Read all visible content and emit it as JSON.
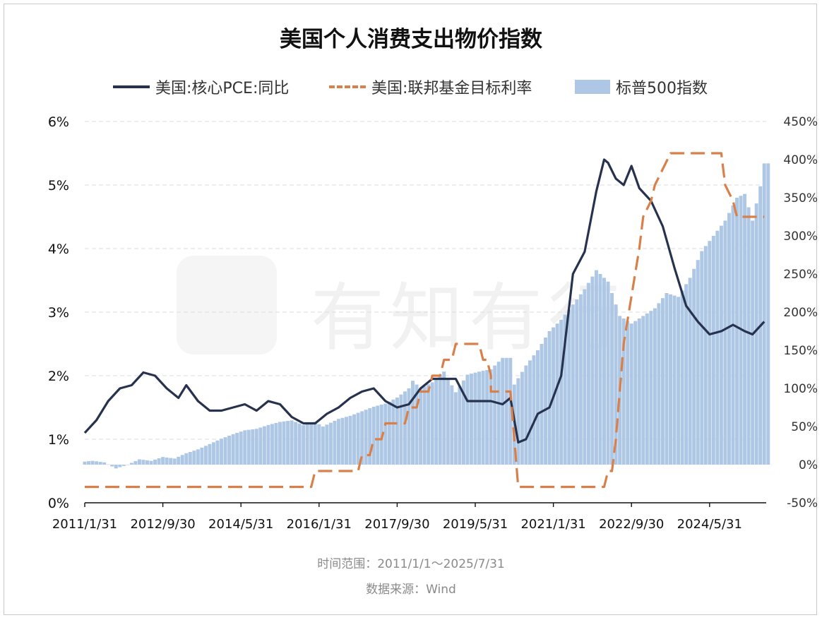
{
  "title": "美国个人消费支出物价指数",
  "legend": {
    "core_pce": "美国:核心PCE:同比",
    "fed_rate": "美国:联邦基金目标利率",
    "sp500": "标普500指数"
  },
  "watermark": "有知有行",
  "footer": {
    "time_range": "时间范围：2011/1/1～2025/7/31",
    "source": "数据来源：Wind"
  },
  "colors": {
    "core_pce": "#27324e",
    "fed_rate": "#d9804a",
    "sp500": "#adc7e5",
    "grid": "#dddddd"
  },
  "chart_data": {
    "type": "line",
    "x_ticks": [
      "2011/1/31",
      "2012/9/30",
      "2014/5/31",
      "2016/1/31",
      "2017/9/30",
      "2019/5/31",
      "2021/1/31",
      "2022/9/30",
      "2024/5/31"
    ],
    "y_left": {
      "ylim": [
        0,
        6
      ],
      "ticks": [
        "0%",
        "1%",
        "2%",
        "3%",
        "4%",
        "5%",
        "6%"
      ]
    },
    "y_right": {
      "ylim": [
        -50,
        450
      ],
      "ticks": [
        "-50%",
        "0%",
        "50%",
        "100%",
        "150%",
        "200%",
        "250%",
        "300%",
        "350%",
        "400%",
        "450%"
      ]
    },
    "grid": true,
    "legend_position": "top",
    "series": [
      {
        "name": "美国:核心PCE:同比",
        "axis": "left",
        "style": "solid",
        "points": [
          [
            "2011-01",
            1.1
          ],
          [
            "2011-04",
            1.3
          ],
          [
            "2011-07",
            1.6
          ],
          [
            "2011-10",
            1.8
          ],
          [
            "2012-01",
            1.85
          ],
          [
            "2012-04",
            2.05
          ],
          [
            "2012-07",
            2.0
          ],
          [
            "2012-10",
            1.8
          ],
          [
            "2013-01",
            1.65
          ],
          [
            "2013-03",
            1.85
          ],
          [
            "2013-06",
            1.6
          ],
          [
            "2013-09",
            1.45
          ],
          [
            "2013-12",
            1.45
          ],
          [
            "2014-03",
            1.5
          ],
          [
            "2014-06",
            1.55
          ],
          [
            "2014-09",
            1.45
          ],
          [
            "2014-12",
            1.6
          ],
          [
            "2015-03",
            1.55
          ],
          [
            "2015-06",
            1.35
          ],
          [
            "2015-09",
            1.25
          ],
          [
            "2015-12",
            1.25
          ],
          [
            "2016-03",
            1.4
          ],
          [
            "2016-06",
            1.5
          ],
          [
            "2016-09",
            1.65
          ],
          [
            "2016-12",
            1.75
          ],
          [
            "2017-03",
            1.8
          ],
          [
            "2017-06",
            1.6
          ],
          [
            "2017-09",
            1.5
          ],
          [
            "2017-12",
            1.55
          ],
          [
            "2018-03",
            1.8
          ],
          [
            "2018-06",
            1.95
          ],
          [
            "2018-09",
            1.95
          ],
          [
            "2018-12",
            1.95
          ],
          [
            "2019-03",
            1.6
          ],
          [
            "2019-06",
            1.6
          ],
          [
            "2019-09",
            1.6
          ],
          [
            "2019-12",
            1.55
          ],
          [
            "2020-02",
            1.65
          ],
          [
            "2020-04",
            0.95
          ],
          [
            "2020-06",
            1.0
          ],
          [
            "2020-09",
            1.4
          ],
          [
            "2020-12",
            1.5
          ],
          [
            "2021-03",
            2.0
          ],
          [
            "2021-06",
            3.6
          ],
          [
            "2021-09",
            3.95
          ],
          [
            "2021-12",
            4.9
          ],
          [
            "2022-02",
            5.4
          ],
          [
            "2022-03",
            5.35
          ],
          [
            "2022-05",
            5.1
          ],
          [
            "2022-07",
            5.0
          ],
          [
            "2022-09",
            5.3
          ],
          [
            "2022-11",
            4.95
          ],
          [
            "2023-02",
            4.75
          ],
          [
            "2023-05",
            4.35
          ],
          [
            "2023-08",
            3.7
          ],
          [
            "2023-11",
            3.1
          ],
          [
            "2024-02",
            2.85
          ],
          [
            "2024-05",
            2.65
          ],
          [
            "2024-08",
            2.7
          ],
          [
            "2024-11",
            2.8
          ],
          [
            "2025-02",
            2.7
          ],
          [
            "2025-04",
            2.65
          ],
          [
            "2025-07",
            2.85
          ]
        ]
      },
      {
        "name": "美国:联邦基金目标利率",
        "axis": "left",
        "style": "dashed",
        "points": [
          [
            "2011-01",
            0.25
          ],
          [
            "2015-11",
            0.25
          ],
          [
            "2015-12",
            0.5
          ],
          [
            "2016-11",
            0.5
          ],
          [
            "2016-12",
            0.75
          ],
          [
            "2017-02",
            0.75
          ],
          [
            "2017-03",
            1.0
          ],
          [
            "2017-05",
            1.0
          ],
          [
            "2017-06",
            1.25
          ],
          [
            "2017-11",
            1.25
          ],
          [
            "2017-12",
            1.5
          ],
          [
            "2018-02",
            1.5
          ],
          [
            "2018-03",
            1.75
          ],
          [
            "2018-05",
            1.75
          ],
          [
            "2018-06",
            2.0
          ],
          [
            "2018-08",
            2.0
          ],
          [
            "2018-09",
            2.25
          ],
          [
            "2018-11",
            2.25
          ],
          [
            "2018-12",
            2.5
          ],
          [
            "2019-06",
            2.5
          ],
          [
            "2019-07",
            2.25
          ],
          [
            "2019-08",
            2.25
          ],
          [
            "2019-09",
            2.0
          ],
          [
            "2019-09",
            1.75
          ],
          [
            "2020-02",
            1.75
          ],
          [
            "2020-03",
            1.0
          ],
          [
            "2020-04",
            0.25
          ],
          [
            "2022-02",
            0.25
          ],
          [
            "2022-03",
            0.5
          ],
          [
            "2022-04",
            0.5
          ],
          [
            "2022-05",
            1.0
          ],
          [
            "2022-06",
            1.75
          ],
          [
            "2022-07",
            2.5
          ],
          [
            "2022-09",
            3.25
          ],
          [
            "2022-11",
            4.0
          ],
          [
            "2022-12",
            4.5
          ],
          [
            "2023-02",
            4.75
          ],
          [
            "2023-03",
            5.0
          ],
          [
            "2023-05",
            5.25
          ],
          [
            "2023-07",
            5.5
          ],
          [
            "2024-08",
            5.5
          ],
          [
            "2024-09",
            5.0
          ],
          [
            "2024-11",
            4.75
          ],
          [
            "2024-12",
            4.5
          ],
          [
            "2025-07",
            4.5
          ]
        ]
      },
      {
        "name": "标普500指数",
        "axis": "right",
        "style": "bars",
        "points": [
          [
            "2011-01",
            4
          ],
          [
            "2011-03",
            5
          ],
          [
            "2011-06",
            3
          ],
          [
            "2011-09",
            -5
          ],
          [
            "2011-12",
            0
          ],
          [
            "2012-03",
            7
          ],
          [
            "2012-06",
            5
          ],
          [
            "2012-09",
            10
          ],
          [
            "2012-12",
            8
          ],
          [
            "2013-03",
            15
          ],
          [
            "2013-06",
            20
          ],
          [
            "2013-09",
            27
          ],
          [
            "2013-12",
            34
          ],
          [
            "2014-03",
            40
          ],
          [
            "2014-06",
            45
          ],
          [
            "2014-09",
            47
          ],
          [
            "2014-12",
            52
          ],
          [
            "2015-03",
            56
          ],
          [
            "2015-06",
            58
          ],
          [
            "2015-09",
            52
          ],
          [
            "2015-12",
            56
          ],
          [
            "2016-02",
            50
          ],
          [
            "2016-06",
            60
          ],
          [
            "2016-09",
            64
          ],
          [
            "2016-12",
            70
          ],
          [
            "2017-03",
            76
          ],
          [
            "2017-06",
            80
          ],
          [
            "2017-09",
            88
          ],
          [
            "2017-12",
            100
          ],
          [
            "2018-01",
            110
          ],
          [
            "2018-03",
            100
          ],
          [
            "2018-06",
            108
          ],
          [
            "2018-09",
            122
          ],
          [
            "2018-12",
            95
          ],
          [
            "2019-03",
            118
          ],
          [
            "2019-06",
            122
          ],
          [
            "2019-09",
            125
          ],
          [
            "2019-12",
            140
          ],
          [
            "2020-02",
            140
          ],
          [
            "2020-03",
            105
          ],
          [
            "2020-06",
            130
          ],
          [
            "2020-09",
            150
          ],
          [
            "2020-12",
            175
          ],
          [
            "2021-03",
            190
          ],
          [
            "2021-06",
            210
          ],
          [
            "2021-09",
            230
          ],
          [
            "2021-12",
            255
          ],
          [
            "2022-03",
            240
          ],
          [
            "2022-06",
            195
          ],
          [
            "2022-09",
            185
          ],
          [
            "2022-12",
            195
          ],
          [
            "2023-03",
            205
          ],
          [
            "2023-06",
            225
          ],
          [
            "2023-09",
            220
          ],
          [
            "2023-12",
            245
          ],
          [
            "2024-03",
            280
          ],
          [
            "2024-06",
            300
          ],
          [
            "2024-09",
            320
          ],
          [
            "2024-12",
            350
          ],
          [
            "2025-02",
            355
          ],
          [
            "2025-04",
            320
          ],
          [
            "2025-06",
            365
          ],
          [
            "2025-07",
            395
          ]
        ]
      }
    ]
  }
}
